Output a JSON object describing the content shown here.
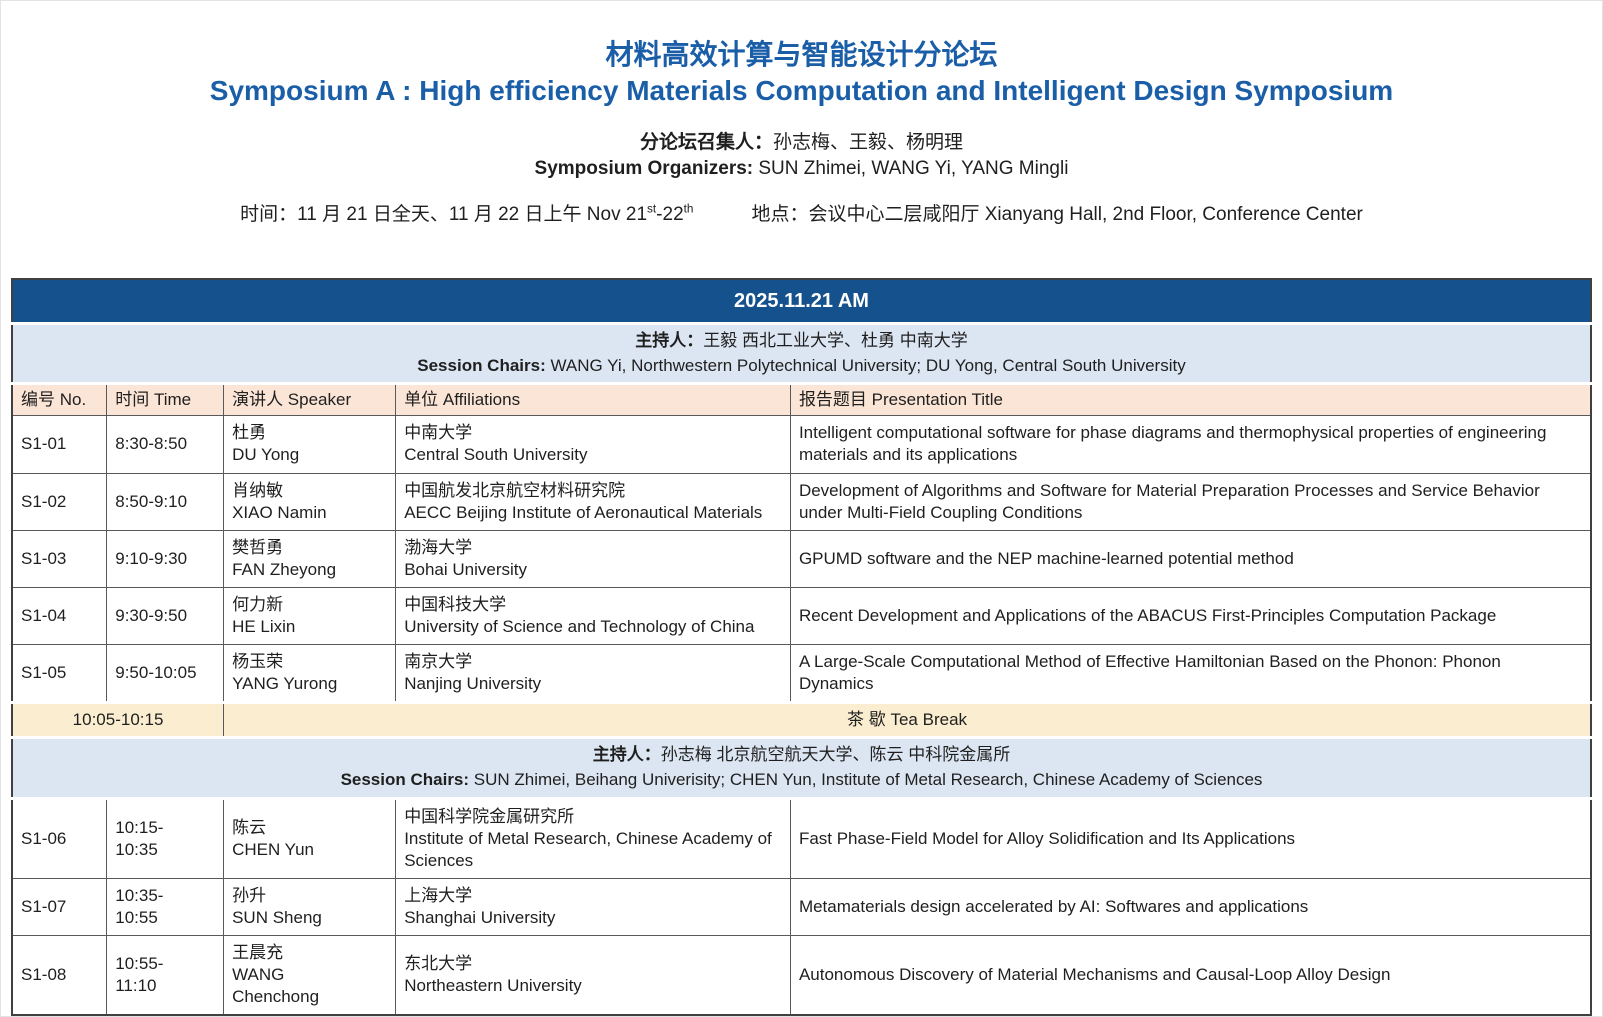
{
  "colors": {
    "band_blue": "#15518C",
    "title_blue": "#1B5EA8",
    "chairs_bg": "#DCE6F2",
    "colhead_bg": "#FBE5D6",
    "tea_bg": "#FBEED0",
    "border_gray": "#595959",
    "outer_border": "#404040",
    "text_color": "#1F1F1F"
  },
  "header": {
    "title_zh": "材料高效计算与智能设计分论坛",
    "title_en": "Symposium A : High efficiency Materials Computation and Intelligent Design Symposium",
    "organizers_zh_label": "分论坛召集人：",
    "organizers_zh": "孙志梅、王毅、杨明理",
    "organizers_en_label": "Symposium Organizers:",
    "organizers_en": " SUN Zhimei, WANG Yi, YANG Mingli",
    "time_pre": "时间：11 月 21 日全天、11 月 22 日上午 Nov 21",
    "time_sup1": "st",
    "time_mid": "-22",
    "time_sup2": "th",
    "location": "地点：会议中心二层咸阳厅 Xianyang Hall, 2nd Floor, Conference Center"
  },
  "session": {
    "date_header": "2025.11.21 AM",
    "chairs1_zh_label": "主持人：",
    "chairs1_zh": "王毅 西北工业大学、杜勇 中南大学",
    "chairs1_en_label": "Session Chairs:",
    "chairs1_en": " WANG Yi, Northwestern Polytechnical University; DU Yong, Central South University",
    "chairs2_zh_label": "主持人：",
    "chairs2_zh": "孙志梅 北京航空航天大学、陈云 中科院金属所",
    "chairs2_en_label": "Session Chairs:",
    "chairs2_en": " SUN Zhimei, Beihang Univerisity; CHEN Yun, Institute of Metal Research, Chinese Academy of Sciences",
    "columns": [
      "编号 No.",
      "时间 Time",
      "演讲人 Speaker",
      "单位 Affiliations",
      "报告题目 Presentation Title"
    ],
    "tea_break": {
      "time": "10:05-10:15",
      "label": "茶 歇 Tea Break"
    },
    "talks1": [
      {
        "code": "S1-01",
        "time": "8:30-8:50",
        "speaker": "杜勇\nDU Yong",
        "affiliation": "中南大学\nCentral South University",
        "title": "Intelligent computational software for phase diagrams and thermophysical properties of engineering materials and its applications"
      },
      {
        "code": "S1-02",
        "time": "8:50-9:10",
        "speaker": "肖纳敏\nXIAO Namin",
        "affiliation": "中国航发北京航空材料研究院\nAECC Beijing Institute of Aeronautical Materials",
        "title": "Development of Algorithms and Software for Material Preparation Processes and Service Behavior under Multi-Field Coupling Conditions"
      },
      {
        "code": "S1-03",
        "time": "9:10-9:30",
        "speaker": "樊哲勇\nFAN Zheyong",
        "affiliation": "渤海大学\nBohai University",
        "title": "GPUMD software and the NEP machine-learned potential method"
      },
      {
        "code": "S1-04",
        "time": "9:30-9:50",
        "speaker": "何力新\nHE Lixin",
        "affiliation": "中国科技大学\nUniversity of Science and Technology of China",
        "title": "Recent Development and Applications of the ABACUS First-Principles Computation Package"
      },
      {
        "code": "S1-05",
        "time": "9:50-10:05",
        "speaker": "杨玉荣\nYANG Yurong",
        "affiliation": "南京大学\nNanjing University",
        "title": "A Large-Scale Computational Method of Effective Hamiltonian Based on the Phonon: Phonon Dynamics"
      }
    ],
    "talks2": [
      {
        "code": "S1-06",
        "time": "10:15-\n10:35",
        "speaker": "陈云\nCHEN Yun",
        "affiliation": "中国科学院金属研究所\nInstitute of Metal Research, Chinese Academy of Sciences",
        "title": "Fast Phase-Field Model for Alloy Solidification and Its Applications"
      },
      {
        "code": "S1-07",
        "time": "10:35-\n10:55",
        "speaker": "孙升\nSUN Sheng",
        "affiliation": "上海大学\nShanghai University",
        "title": "Metamaterials design accelerated by AI: Softwares and applications"
      },
      {
        "code": "S1-08",
        "time": "10:55-\n11:10",
        "speaker": "王晨充\nWANG\nChenchong",
        "affiliation": "东北大学\nNortheastern University",
        "title": "Autonomous Discovery of Material Mechanisms and Causal-Loop Alloy Design"
      }
    ]
  }
}
